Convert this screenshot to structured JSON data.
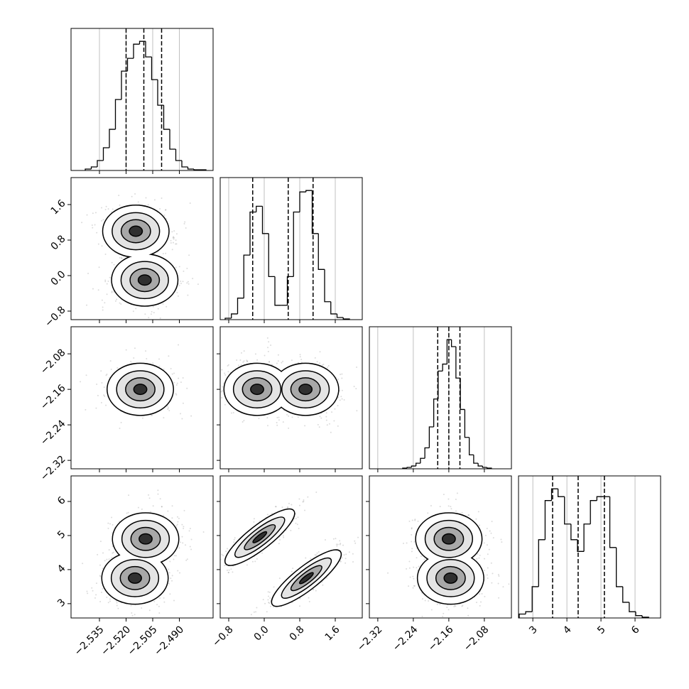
{
  "chart_data": {
    "type": "corner",
    "grid": true,
    "color": "#000000",
    "parameters": [
      {
        "xlim": [
          -2.551,
          -2.471
        ],
        "ticks": [
          {
            "value": -2.535,
            "label": "−2.535"
          },
          {
            "value": -2.52,
            "label": "−2.520"
          },
          {
            "value": -2.505,
            "label": "−2.505"
          },
          {
            "value": -2.49,
            "label": "−2.490"
          }
        ],
        "quantiles": [
          -2.52,
          -2.51,
          -2.5
        ],
        "bins": [
          -2.543,
          -2.5396,
          -2.5362,
          -2.5328,
          -2.5294,
          -2.526,
          -2.5226,
          -2.5192,
          -2.5158,
          -2.5124,
          -2.509,
          -2.5056,
          -2.5022,
          -2.4988,
          -2.4954,
          -2.492,
          -2.4886,
          -2.4852,
          -2.4818,
          -2.4784,
          -2.475
        ],
        "counts": [
          2,
          5,
          14,
          32,
          58,
          100,
          140,
          158,
          178,
          182,
          160,
          128,
          92,
          58,
          30,
          14,
          5,
          2,
          1,
          1
        ]
      },
      {
        "xlim": [
          -0.992,
          2.208
        ],
        "ticks": [
          {
            "value": -0.8,
            "label": "−0.8"
          },
          {
            "value": 0,
            "label": "0.0"
          },
          0.8,
          1.6
        ],
        "quantiles": [
          -0.26,
          0.54,
          1.1
        ],
        "bins": [
          -0.88,
          -0.74,
          -0.6,
          -0.46,
          -0.32,
          -0.18,
          -0.04,
          0.1,
          0.24,
          0.38,
          0.52,
          0.66,
          0.8,
          0.94,
          1.08,
          1.22,
          1.36,
          1.5,
          1.64,
          1.78,
          1.92
        ],
        "counts": [
          2,
          8,
          30,
          90,
          150,
          158,
          120,
          60,
          20,
          20,
          60,
          150,
          178,
          180,
          120,
          70,
          25,
          8,
          3,
          1
        ]
      },
      {
        "xlim": [
          -2.339,
          -2.019
        ],
        "ticks": [
          {
            "value": -2.32,
            "label": "−2.32"
          },
          {
            "value": -2.24,
            "label": "−2.24"
          },
          {
            "value": -2.16,
            "label": "−2.16"
          },
          {
            "value": -2.08,
            "label": "−2.08"
          }
        ],
        "quantiles": [
          -2.185,
          -2.16,
          -2.135
        ],
        "bins": [
          -2.264,
          -2.254,
          -2.244,
          -2.234,
          -2.224,
          -2.214,
          -2.204,
          -2.194,
          -2.184,
          -2.174,
          -2.164,
          -2.154,
          -2.144,
          -2.134,
          -2.124,
          -2.114,
          -2.104,
          -2.094,
          -2.084,
          -2.074,
          -2.064
        ],
        "counts": [
          1,
          2,
          4,
          8,
          15,
          30,
          60,
          100,
          140,
          150,
          185,
          175,
          130,
          85,
          45,
          20,
          8,
          4,
          2,
          1
        ]
      },
      {
        "xlim": [
          2.58,
          6.75
        ],
        "ticks": [
          3,
          4,
          5,
          6
        ],
        "quantiles": [
          3.58,
          4.33,
          5.1
        ],
        "bins": [
          2.6,
          2.79,
          2.98,
          3.17,
          3.36,
          3.55,
          3.74,
          3.93,
          4.12,
          4.31,
          4.5,
          4.69,
          4.88,
          5.07,
          5.26,
          5.45,
          5.64,
          5.83,
          6.02,
          6.21,
          6.4
        ],
        "counts": [
          5,
          8,
          40,
          100,
          150,
          165,
          155,
          120,
          100,
          85,
          120,
          150,
          155,
          155,
          90,
          40,
          20,
          8,
          3,
          1
        ]
      }
    ],
    "panels": [
      {
        "xparam": 0,
        "yparam": 1,
        "modes": [
          [
            -2.5145,
            1.0
          ],
          [
            -2.5095,
            -0.1
          ]
        ]
      },
      {
        "xparam": 0,
        "yparam": 2,
        "modes": [
          [
            -2.512,
            -2.16
          ]
        ]
      },
      {
        "xparam": 1,
        "yparam": 2,
        "modes": [
          [
            -0.16,
            -2.16
          ],
          [
            0.93,
            -2.16
          ]
        ]
      },
      {
        "xparam": 0,
        "yparam": 3,
        "modes": [
          [
            -2.509,
            4.9
          ],
          [
            -2.515,
            3.75
          ]
        ]
      },
      {
        "xparam": 1,
        "yparam": 3,
        "modes": [
          [
            -0.1,
            4.95
          ],
          [
            0.95,
            3.75
          ]
        ]
      },
      {
        "xparam": 2,
        "yparam": 3,
        "modes": [
          [
            -2.16,
            4.9
          ],
          [
            -2.156,
            3.75
          ]
        ]
      }
    ]
  }
}
